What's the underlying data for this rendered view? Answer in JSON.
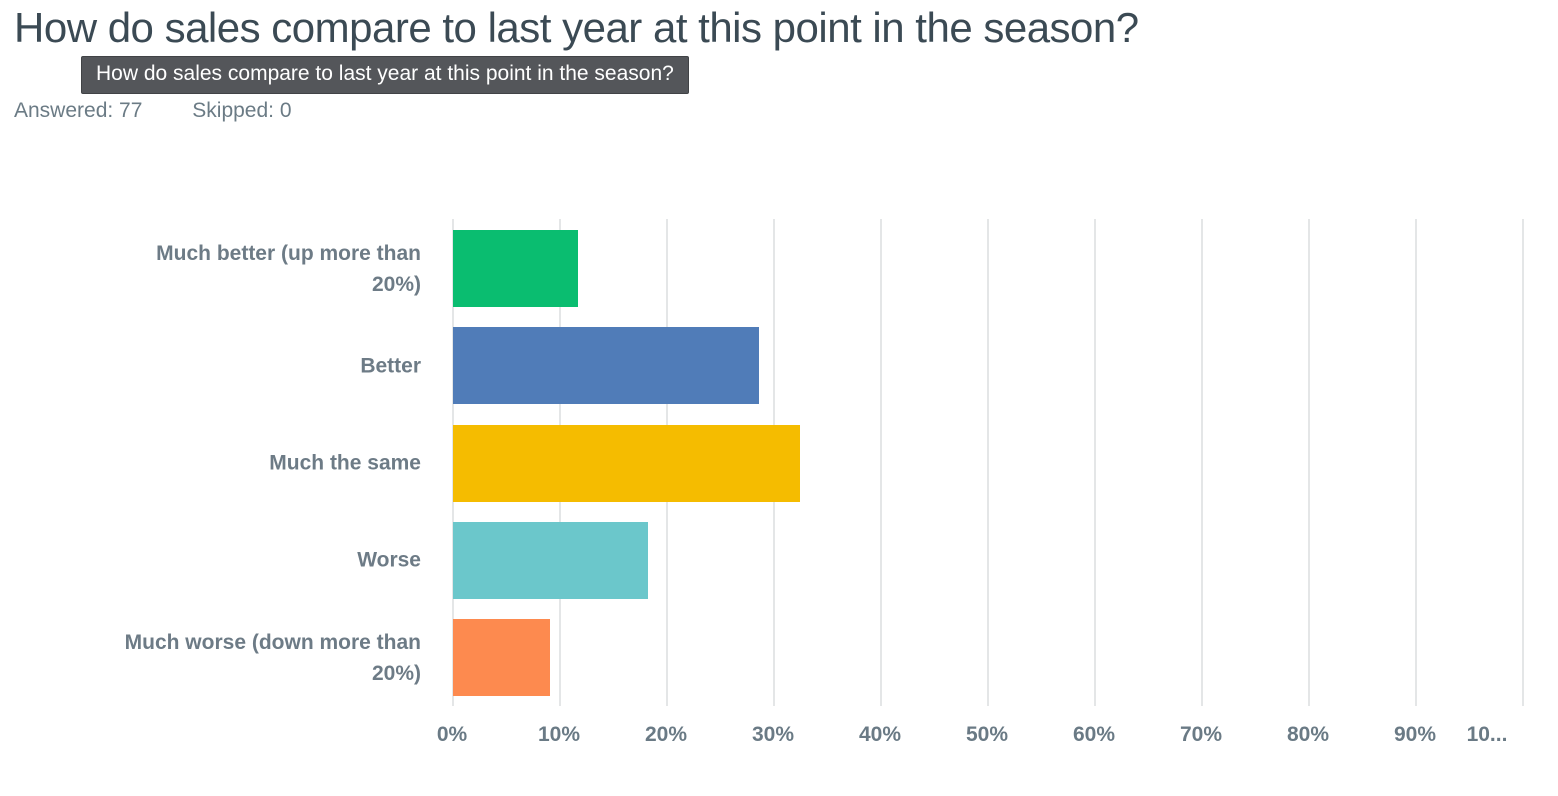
{
  "header": {
    "title": "How do sales compare to last year at this point in the season?",
    "tooltip": "How do sales compare to last year at this point in the season?",
    "answered": "Answered: 77",
    "skipped": "Skipped: 0"
  },
  "chart_data": {
    "type": "bar",
    "orientation": "horizontal",
    "title": "How do sales compare to last year at this point in the season?",
    "answered_count": 77,
    "skipped_count": 0,
    "categories": [
      "Much better (up more than 20%)",
      "Better",
      "Much the same",
      "Worse",
      "Much worse (down more than 20%)"
    ],
    "values": [
      11.69,
      28.57,
      32.47,
      18.18,
      9.09
    ],
    "bar_colors": [
      "#0abd70",
      "#507cb8",
      "#f5bc00",
      "#6bc7cb",
      "#fd8a4f"
    ],
    "x_tick_labels": [
      "0%",
      "10%",
      "20%",
      "30%",
      "40%",
      "50%",
      "60%",
      "70%",
      "80%",
      "90%",
      "10..."
    ],
    "xlim": [
      0,
      100
    ],
    "grid": true,
    "legend": false,
    "colors": {
      "title": "#3b4a54",
      "meta": "#6b7b85",
      "cat": "#6d7b86",
      "axis": "#6a7a85",
      "grid": "#e4e6e7",
      "tooltip_bg": "#54565a",
      "tooltip_text": "#ffffff"
    }
  }
}
